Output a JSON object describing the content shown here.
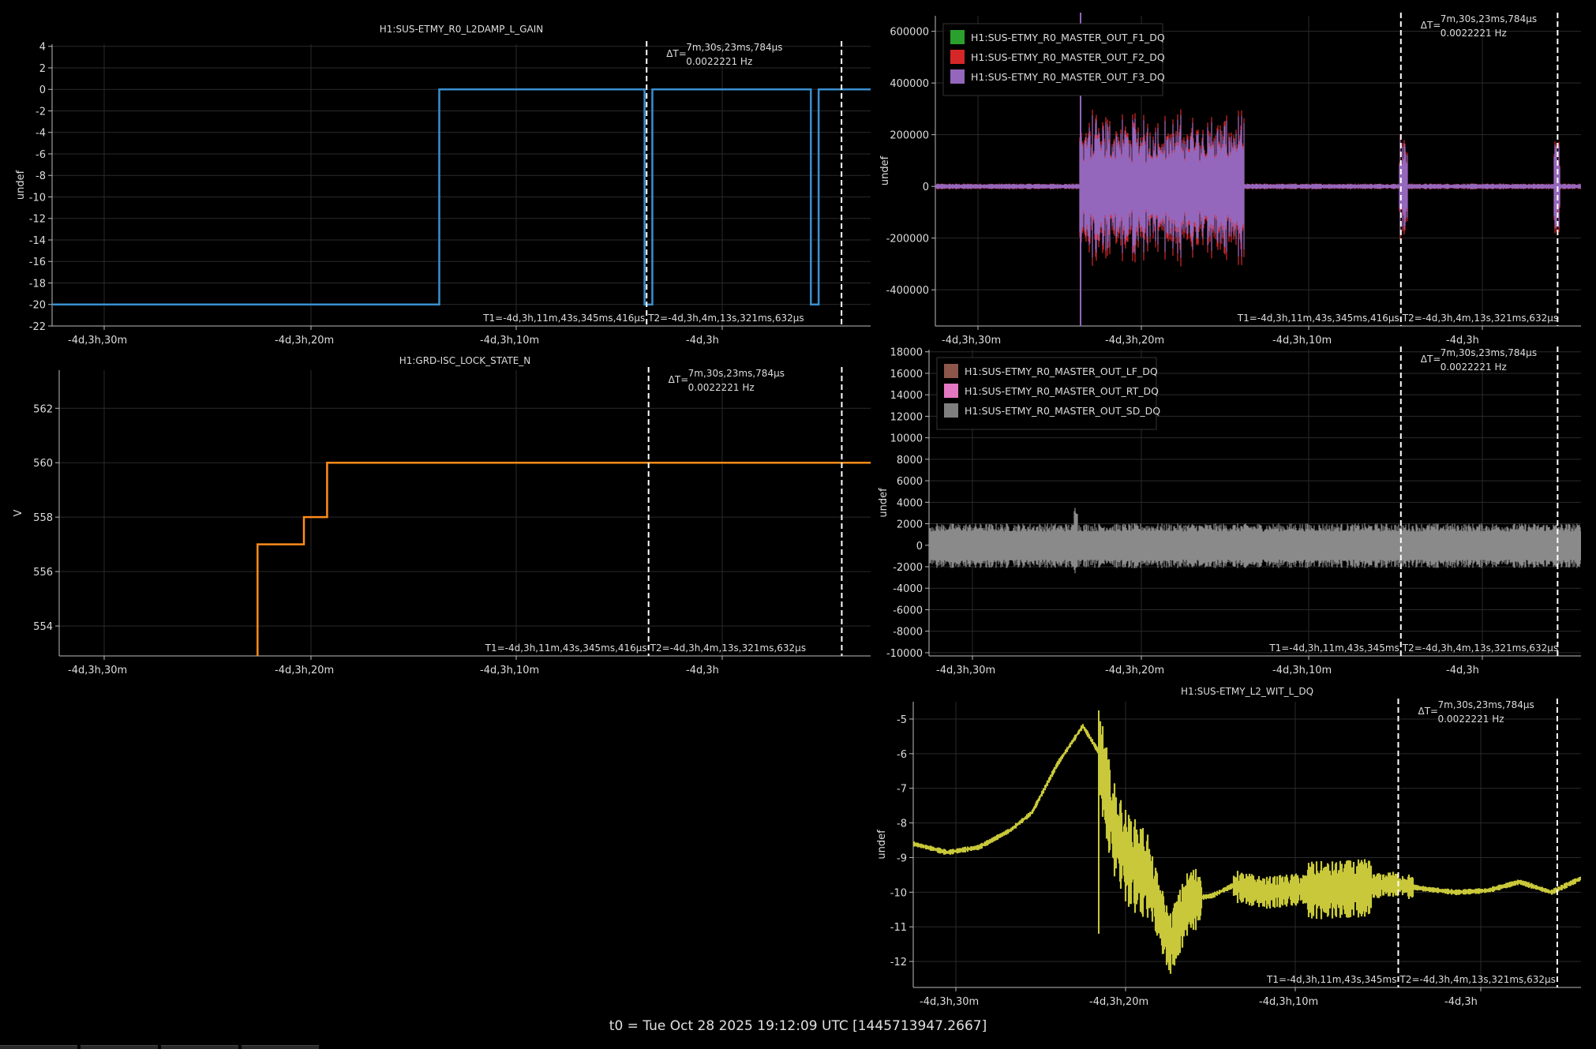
{
  "footer": "t0 = Tue Oct 28 2025 19:12:09 UTC [1445713947.2667]",
  "colors": {
    "background": "#000000",
    "axis": "#bbbbbb",
    "grid": "#2a2a2a",
    "text": "#dddddd",
    "cursor": "#ffffff"
  },
  "time_ticks": [
    "-4d,3h,30m",
    "-4d,3h,20m",
    "-4d,3h,10m",
    "-4d,3h"
  ],
  "cursors": {
    "t1_label": "T1=-4d,3h,11m,43s,345ms,416µs",
    "t2_label": "T2=-4d,3h,4m,13s,321ms,632µs",
    "t1_label_short": "T1=-4d,3h,11m,43s,345ms",
    "t2_label_short": "T2=-4d,3h,4m,13s,321ms,632µs",
    "dt_prefix": "ΔT=",
    "dt": "7m,30s,23ms,784µs",
    "freq": "0.0022221 Hz"
  },
  "chart_data": [
    {
      "type": "line",
      "title": "H1:SUS-ETMY_R0_L2DAMP_L_GAIN",
      "ylabel": "undef",
      "xlim": [
        -34.6,
        -3.1
      ],
      "ylim": [
        -22,
        4.2
      ],
      "y_ticks": [
        "4",
        "2",
        "0",
        "-2",
        "-4",
        "-6",
        "-8",
        "-10",
        "-12",
        "-14",
        "-16",
        "-18",
        "-20",
        "-22"
      ],
      "cursors_x": [
        -11.72,
        -4.22
      ],
      "series": [
        {
          "color": "#3a8fd0",
          "x": [
            -34.6,
            -19.7,
            -19.7,
            -11.8,
            -11.8,
            -11.5,
            -11.5,
            -5.4,
            -5.4,
            -5.1,
            -5.1,
            -3.1
          ],
          "y": [
            -20,
            -20,
            0,
            0,
            -20,
            -20,
            0,
            0,
            -20,
            -20,
            0,
            0
          ]
        }
      ]
    },
    {
      "type": "line",
      "title": "",
      "ylabel": "undef",
      "xlim": [
        -34.0,
        -3.1
      ],
      "ylim": [
        -540000,
        660000
      ],
      "y_ticks": [
        "600000",
        "400000",
        "200000",
        "0",
        "-200000",
        "-400000"
      ],
      "cursors_x": [
        -11.72,
        -4.22
      ],
      "legend": [
        {
          "name": "H1:SUS-ETMY_R0_MASTER_OUT_F1_DQ",
          "color": "#2ca02c"
        },
        {
          "name": "H1:SUS-ETMY_R0_MASTER_OUT_F2_DQ",
          "color": "#d62728"
        },
        {
          "name": "H1:SUS-ETMY_R0_MASTER_OUT_F3_DQ",
          "color": "#9467bd"
        }
      ],
      "signal": {
        "color": "#9467bd",
        "accent": "#d62728",
        "segments": [
          [
            -27.1,
            -19.2,
            200000
          ],
          [
            -11.8,
            -11.4,
            150000
          ],
          [
            -4.4,
            -4.1,
            150000
          ]
        ],
        "baseline": 8000,
        "spike_x": -27.05
      }
    },
    {
      "type": "line",
      "title": "H1:GRD-ISC_LOCK_STATE_N",
      "ylabel": "V",
      "xlim": [
        -34.6,
        -3.1
      ],
      "ylim": [
        552.9,
        563.4
      ],
      "y_ticks": [
        "562",
        "560",
        "558",
        "556",
        "554"
      ],
      "cursors_x": [
        -11.72,
        -4.22
      ],
      "series": [
        {
          "color": "#ff8c1a",
          "x": [
            -26.9,
            -26.9,
            -25.1,
            -25.1,
            -24.2,
            -24.2,
            -3.1
          ],
          "y": [
            552.9,
            557,
            557,
            558,
            558,
            560,
            560
          ]
        }
      ]
    },
    {
      "type": "line",
      "title": "",
      "ylabel": "undef",
      "xlim": [
        -34.3,
        -3.1
      ],
      "ylim": [
        -10300,
        18200
      ],
      "y_ticks": [
        "18000",
        "16000",
        "14000",
        "12000",
        "10000",
        "8000",
        "6000",
        "4000",
        "2000",
        "0",
        "-2000",
        "-4000",
        "-6000",
        "-8000",
        "-10000"
      ],
      "cursors_x": [
        -11.72,
        -4.22
      ],
      "legend": [
        {
          "name": "H1:SUS-ETMY_R0_MASTER_OUT_LF_DQ",
          "color": "#8c564b"
        },
        {
          "name": "H1:SUS-ETMY_R0_MASTER_OUT_RT_DQ",
          "color": "#e377c2"
        },
        {
          "name": "H1:SUS-ETMY_R0_MASTER_OUT_SD_DQ",
          "color": "#7f7f7f"
        }
      ],
      "signal": {
        "color": "#8a8a8a",
        "amplitude": 1700
      }
    },
    {
      "type": "line",
      "title": "H1:SUS-ETMY_L2_WIT_L_DQ",
      "ylabel": "undef",
      "xlim": [
        -34.6,
        -3.1
      ],
      "ylim": [
        -12.75,
        -4.5
      ],
      "y_ticks": [
        "-5",
        "-6",
        "-7",
        "-8",
        "-9",
        "-10",
        "-11",
        "-12"
      ],
      "cursors_x": [
        -11.72,
        -4.22
      ],
      "signal": {
        "color": "#c8c83a"
      }
    }
  ]
}
